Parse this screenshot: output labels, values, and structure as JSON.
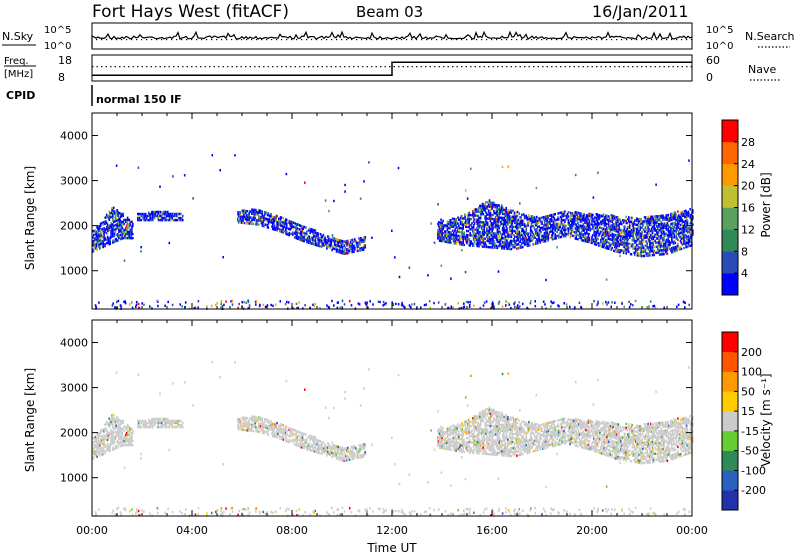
{
  "header": {
    "station": "Fort Hays West (fitACF)",
    "beam": "Beam 03",
    "date": "16/Jan/2011"
  },
  "nsky_panel": {
    "label": "N.Sky",
    "ticks_left": [
      "10^5",
      "10^0"
    ],
    "right_label": "N.Search",
    "ticks_right": [
      "10^5",
      "10^0"
    ]
  },
  "freq_panel": {
    "label_top": "Freq.",
    "label_unit": "[MHz]",
    "ticks_left": [
      "18",
      "8"
    ],
    "right_label": "Nave",
    "ticks_right": [
      "60",
      "0"
    ],
    "freq_steps": [
      {
        "t": 0.0,
        "freq": 10.2
      },
      {
        "t": 12.0,
        "freq": 15.2
      },
      {
        "t": 24.0,
        "freq": 15.2
      }
    ],
    "nave_level": 33
  },
  "cpid_panel": {
    "label": "CPID",
    "mode": "normal 150 IF"
  },
  "chart_data": [
    {
      "type": "heatmap",
      "quantity": "power",
      "xlabel": "",
      "ylabel": "Slant Range [km]",
      "xlim": [
        0,
        24
      ],
      "ylim": [
        150,
        4500
      ],
      "yticks": [
        "1000",
        "2000",
        "3000",
        "4000"
      ],
      "colorbar_label": "Power [dB]",
      "colorbar_ticks": [
        "4",
        "8",
        "12",
        "16",
        "20",
        "24",
        "28"
      ],
      "colors": [
        "#0000ff",
        "#2a4cb8",
        "#2e8b57",
        "#5ca060",
        "#c0c030",
        "#ff9900",
        "#ff6600",
        "#ff0000"
      ],
      "echo_bands": [
        {
          "t0": 0.0,
          "t1": 1.6,
          "r_low": [
            1450,
            1550,
            1650,
            1750,
            1750
          ],
          "r_high": [
            1900,
            2150,
            2450,
            2300,
            2100
          ]
        },
        {
          "t0": 1.8,
          "t1": 3.6,
          "r_low": [
            2150,
            2150,
            2150
          ],
          "r_high": [
            2300,
            2350,
            2300
          ]
        },
        {
          "t0": 5.8,
          "t1": 10.9,
          "r_low": [
            2100,
            2050,
            1900,
            1700,
            1550,
            1400,
            1500
          ],
          "r_high": [
            2350,
            2400,
            2250,
            2050,
            1850,
            1700,
            1800
          ]
        },
        {
          "t0": 13.8,
          "t1": 24.0,
          "r_low": [
            1700,
            1600,
            1550,
            1500,
            1650,
            1800,
            1650,
            1450,
            1350,
            1400,
            1600
          ],
          "r_high": [
            2100,
            2250,
            2600,
            2350,
            2200,
            2350,
            2300,
            2250,
            2200,
            2300,
            2400
          ]
        }
      ]
    },
    {
      "type": "heatmap",
      "quantity": "velocity",
      "xlabel": "Time UT",
      "ylabel": "Slant Range [km]",
      "xlim": [
        0,
        24
      ],
      "ylim": [
        150,
        4500
      ],
      "xticks": [
        "00:00",
        "04:00",
        "08:00",
        "12:00",
        "16:00",
        "20:00",
        "00:00"
      ],
      "yticks": [
        "1000",
        "2000",
        "3000",
        "4000"
      ],
      "colorbar_label": "Velocity [m s⁻¹]",
      "colorbar_ticks": [
        "200",
        "100",
        "50",
        "15",
        "-15",
        "-50",
        "-100",
        "-200"
      ],
      "colors": [
        "#2233aa",
        "#2a60c0",
        "#2e8b57",
        "#66cc33",
        "#cccccc",
        "#ffcc00",
        "#ff9900",
        "#ff5500",
        "#ff0000"
      ]
    }
  ]
}
